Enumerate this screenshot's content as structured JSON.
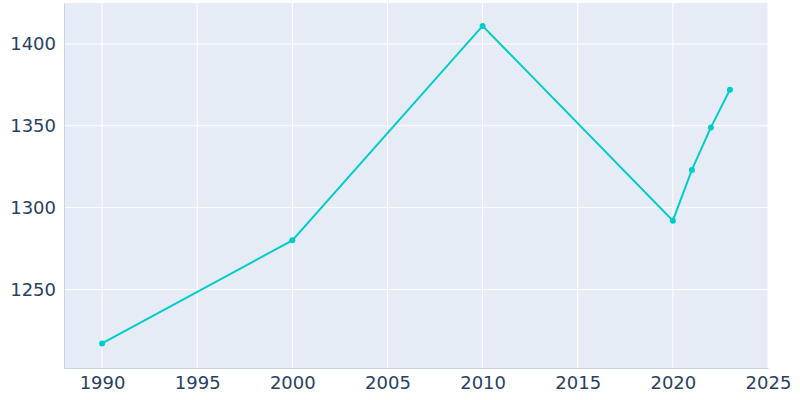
{
  "chart_data": {
    "type": "line",
    "x": [
      1990,
      2000,
      2010,
      2020,
      2021,
      2022,
      2023
    ],
    "values": [
      1217,
      1280,
      1411,
      1292,
      1323,
      1349,
      1372
    ],
    "color": "#00cccc",
    "marker": "circle",
    "xlim": [
      1988,
      2025
    ],
    "xticks": [
      1990,
      1995,
      2000,
      2005,
      2010,
      2015,
      2020,
      2025
    ],
    "ylim": [
      1202,
      1425
    ],
    "yticks": [
      1250,
      1300,
      1350,
      1400
    ],
    "grid": true
  }
}
